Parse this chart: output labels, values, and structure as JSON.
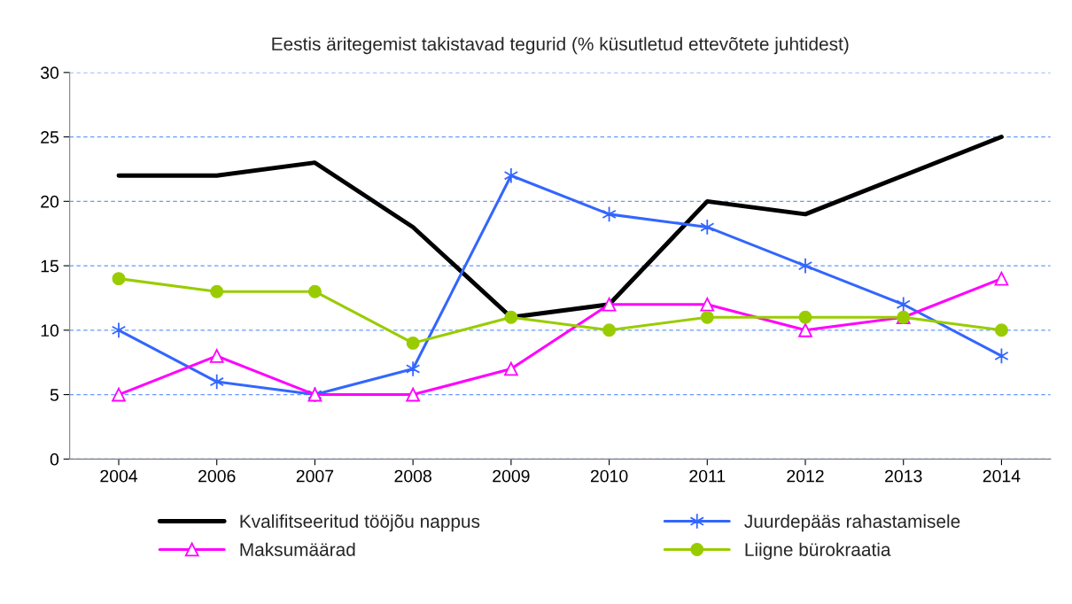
{
  "chart_data": {
    "type": "line",
    "title": "Eestis äritegemist takistavad tegurid (% küsutletud ettevõtete juhtidest)",
    "categories": [
      "2004",
      "2006",
      "2007",
      "2008",
      "2009",
      "2010",
      "2011",
      "2012",
      "2013",
      "2014"
    ],
    "series": [
      {
        "name": "Kvalifitseeritud tööjõu nappus",
        "color": "#000000",
        "marker": "none",
        "values": [
          22,
          22,
          23,
          18,
          11,
          12,
          20,
          19,
          22,
          25
        ]
      },
      {
        "name": "Juurdepääs rahastamisele",
        "color": "#3366ff",
        "marker": "cross",
        "values": [
          10,
          6,
          5,
          7,
          22,
          19,
          18,
          15,
          12,
          8
        ]
      },
      {
        "name": "Maksumäärad",
        "color": "#ff00ff",
        "marker": "triangle",
        "values": [
          5,
          8,
          5,
          5,
          7,
          12,
          12,
          10,
          11,
          14
        ]
      },
      {
        "name": "Liigne bürokraatia",
        "color": "#99cc00",
        "marker": "circle",
        "values": [
          14,
          13,
          13,
          9,
          11,
          10,
          11,
          11,
          11,
          10
        ]
      }
    ],
    "ylim": [
      0,
      30
    ],
    "yticks": [
      0,
      5,
      10,
      15,
      20,
      25,
      30
    ],
    "grid": "y",
    "legend": "bottom"
  }
}
